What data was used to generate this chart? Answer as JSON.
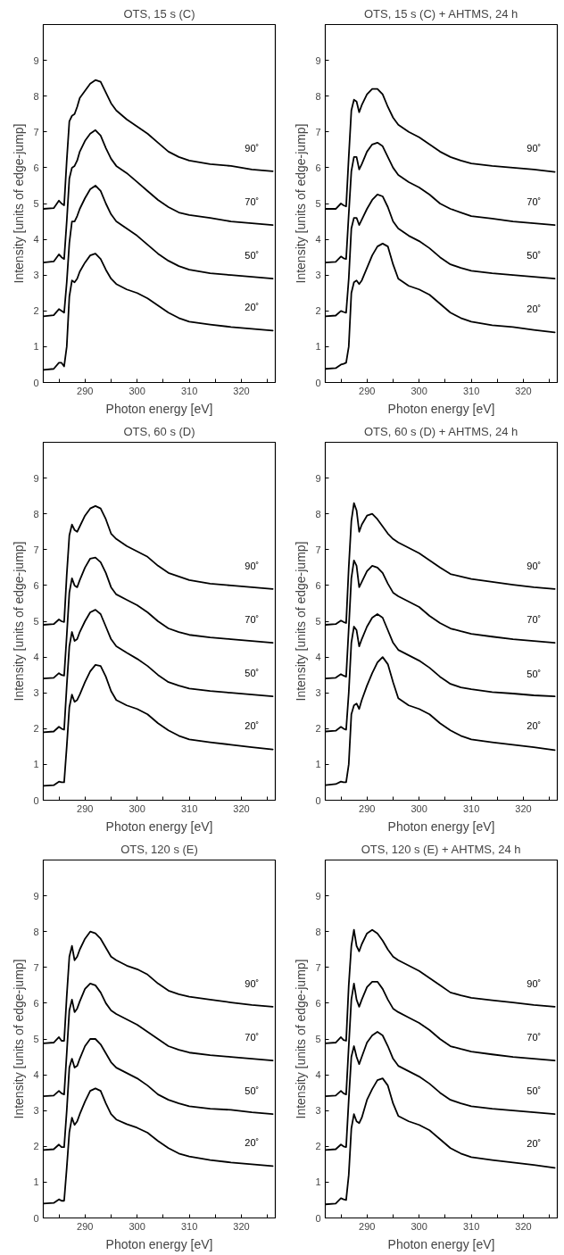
{
  "chart_data": [
    {
      "type": "line",
      "title": "OTS, 15 s (C)",
      "xlabel": "Photon energy [eV]",
      "ylabel": "Intensity [units of edge-jump]",
      "xlim": [
        282,
        326.5
      ],
      "ylim": [
        0,
        10
      ],
      "xticks": [
        {
          "value": 285,
          "label": null
        },
        290,
        {
          "value": 295,
          "label": null
        },
        300,
        {
          "value": 305,
          "label": null
        },
        310,
        {
          "value": 315,
          "label": null
        },
        320,
        {
          "value": 325,
          "label": null
        }
      ],
      "yticks": [
        0,
        1,
        2,
        3,
        4,
        5,
        6,
        7,
        8,
        9
      ],
      "grid": false,
      "legend": false,
      "x": [
        282,
        284,
        285,
        285.5,
        286,
        286.5,
        287,
        287.5,
        288,
        288.5,
        289,
        290,
        291,
        292,
        293,
        294,
        295,
        296,
        298,
        300,
        302,
        304,
        306,
        308,
        310,
        314,
        318,
        322,
        326
      ],
      "series": [
        {
          "name": "20˚",
          "color": "#000000",
          "values": [
            0.35,
            0.38,
            0.55,
            0.55,
            0.45,
            1.0,
            2.4,
            2.85,
            2.8,
            2.9,
            3.1,
            3.35,
            3.55,
            3.6,
            3.45,
            3.15,
            2.9,
            2.75,
            2.6,
            2.5,
            2.35,
            2.15,
            1.95,
            1.8,
            1.7,
            1.62,
            1.55,
            1.5,
            1.45
          ]
        },
        {
          "name": "50˚",
          "color": "#000000",
          "values": [
            1.85,
            1.88,
            2.05,
            2.0,
            1.95,
            2.8,
            3.9,
            4.5,
            4.5,
            4.65,
            4.85,
            5.15,
            5.4,
            5.5,
            5.35,
            5.0,
            4.7,
            4.5,
            4.3,
            4.1,
            3.85,
            3.6,
            3.4,
            3.25,
            3.15,
            3.05,
            3.0,
            2.95,
            2.9
          ]
        },
        {
          "name": "70˚",
          "color": "#000000",
          "values": [
            3.35,
            3.38,
            3.58,
            3.5,
            3.45,
            4.5,
            5.7,
            6.0,
            6.05,
            6.2,
            6.45,
            6.75,
            6.95,
            7.05,
            6.9,
            6.55,
            6.25,
            6.05,
            5.85,
            5.6,
            5.35,
            5.1,
            4.9,
            4.75,
            4.68,
            4.6,
            4.5,
            4.45,
            4.4
          ]
        },
        {
          "name": "90˚",
          "color": "#000000",
          "values": [
            4.85,
            4.87,
            5.08,
            5.0,
            4.95,
            6.2,
            7.3,
            7.45,
            7.5,
            7.7,
            7.95,
            8.15,
            8.35,
            8.45,
            8.4,
            8.1,
            7.8,
            7.6,
            7.35,
            7.15,
            6.95,
            6.7,
            6.45,
            6.3,
            6.2,
            6.1,
            6.05,
            5.95,
            5.9
          ]
        }
      ]
    },
    {
      "type": "line",
      "title": "OTS, 15 s (C) + AHTMS, 24 h",
      "xlabel": "Photon energy [eV]",
      "ylabel": "Intensity [units of edge-jump]",
      "xlim": [
        282,
        326.5
      ],
      "ylim": [
        0,
        10
      ],
      "xticks": [
        {
          "value": 285,
          "label": null
        },
        290,
        {
          "value": 295,
          "label": null
        },
        300,
        {
          "value": 305,
          "label": null
        },
        310,
        {
          "value": 315,
          "label": null
        },
        320,
        {
          "value": 325,
          "label": null
        }
      ],
      "yticks": [
        0,
        1,
        2,
        3,
        4,
        5,
        6,
        7,
        8,
        9
      ],
      "grid": false,
      "legend": false,
      "x": [
        282,
        284,
        285,
        285.5,
        286,
        286.5,
        287,
        287.5,
        288,
        288.5,
        289,
        290,
        291,
        292,
        293,
        294,
        295,
        296,
        298,
        300,
        302,
        304,
        306,
        308,
        310,
        314,
        318,
        322,
        326
      ],
      "series": [
        {
          "name": "20˚",
          "color": "#000000",
          "values": [
            0.38,
            0.4,
            0.5,
            0.52,
            0.55,
            1.0,
            2.5,
            2.8,
            2.85,
            2.75,
            2.85,
            3.2,
            3.55,
            3.8,
            3.88,
            3.8,
            3.3,
            2.9,
            2.7,
            2.6,
            2.45,
            2.2,
            1.95,
            1.8,
            1.7,
            1.6,
            1.55,
            1.47,
            1.4
          ]
        },
        {
          "name": "50˚",
          "color": "#000000",
          "values": [
            1.85,
            1.87,
            2.0,
            1.97,
            1.95,
            2.9,
            4.3,
            4.6,
            4.6,
            4.4,
            4.55,
            4.85,
            5.1,
            5.25,
            5.2,
            4.9,
            4.5,
            4.3,
            4.1,
            3.95,
            3.75,
            3.5,
            3.3,
            3.2,
            3.12,
            3.05,
            3.0,
            2.95,
            2.9
          ]
        },
        {
          "name": "70˚",
          "color": "#000000",
          "values": [
            3.35,
            3.37,
            3.52,
            3.47,
            3.45,
            4.7,
            5.9,
            6.3,
            6.3,
            5.95,
            6.1,
            6.45,
            6.65,
            6.7,
            6.6,
            6.3,
            6.0,
            5.8,
            5.6,
            5.45,
            5.25,
            5.0,
            4.85,
            4.75,
            4.65,
            4.58,
            4.5,
            4.45,
            4.4
          ]
        },
        {
          "name": "90˚",
          "color": "#000000",
          "values": [
            4.85,
            4.85,
            5.0,
            4.95,
            4.92,
            6.3,
            7.6,
            7.9,
            7.85,
            7.55,
            7.75,
            8.05,
            8.2,
            8.2,
            8.05,
            7.7,
            7.4,
            7.2,
            7.0,
            6.85,
            6.65,
            6.45,
            6.3,
            6.2,
            6.12,
            6.05,
            6.0,
            5.95,
            5.88
          ]
        }
      ]
    },
    {
      "type": "line",
      "title": "OTS, 60 s (D)",
      "xlabel": "Photon energy [eV]",
      "ylabel": "Intensity [units of edge-jump]",
      "xlim": [
        282,
        326.5
      ],
      "ylim": [
        0,
        10
      ],
      "xticks": [
        {
          "value": 285,
          "label": null
        },
        290,
        {
          "value": 295,
          "label": null
        },
        300,
        {
          "value": 305,
          "label": null
        },
        310,
        {
          "value": 315,
          "label": null
        },
        320,
        {
          "value": 325,
          "label": null
        }
      ],
      "yticks": [
        0,
        1,
        2,
        3,
        4,
        5,
        6,
        7,
        8,
        9
      ],
      "grid": false,
      "legend": false,
      "x": [
        282,
        284,
        285,
        285.5,
        286,
        286.5,
        287,
        287.5,
        288,
        288.5,
        289,
        290,
        291,
        292,
        293,
        294,
        295,
        296,
        298,
        300,
        302,
        304,
        306,
        308,
        310,
        314,
        318,
        322,
        326
      ],
      "series": [
        {
          "name": "20˚",
          "color": "#000000",
          "values": [
            0.4,
            0.42,
            0.52,
            0.5,
            0.5,
            1.5,
            2.6,
            2.95,
            2.75,
            2.8,
            2.95,
            3.3,
            3.6,
            3.78,
            3.75,
            3.45,
            3.05,
            2.8,
            2.65,
            2.55,
            2.4,
            2.15,
            1.95,
            1.8,
            1.7,
            1.62,
            1.55,
            1.48,
            1.42
          ]
        },
        {
          "name": "50˚",
          "color": "#000000",
          "values": [
            1.9,
            1.92,
            2.05,
            2.0,
            1.97,
            3.2,
            4.3,
            4.7,
            4.45,
            4.5,
            4.7,
            5.0,
            5.25,
            5.32,
            5.2,
            4.85,
            4.5,
            4.3,
            4.12,
            3.95,
            3.75,
            3.5,
            3.3,
            3.2,
            3.12,
            3.05,
            3.0,
            2.95,
            2.9
          ]
        },
        {
          "name": "70˚",
          "color": "#000000",
          "values": [
            3.4,
            3.42,
            3.55,
            3.5,
            3.48,
            4.6,
            5.8,
            6.2,
            6.0,
            5.95,
            6.15,
            6.5,
            6.75,
            6.78,
            6.65,
            6.35,
            5.95,
            5.75,
            5.6,
            5.45,
            5.25,
            5.0,
            4.8,
            4.7,
            4.62,
            4.55,
            4.5,
            4.45,
            4.4
          ]
        },
        {
          "name": "90˚",
          "color": "#000000",
          "values": [
            4.9,
            4.92,
            5.05,
            5.0,
            4.98,
            6.3,
            7.4,
            7.7,
            7.55,
            7.5,
            7.65,
            7.95,
            8.15,
            8.22,
            8.15,
            7.85,
            7.45,
            7.3,
            7.1,
            6.95,
            6.8,
            6.55,
            6.35,
            6.25,
            6.15,
            6.05,
            6.0,
            5.95,
            5.9
          ]
        }
      ]
    },
    {
      "type": "line",
      "title": "OTS, 60 s (D) + AHTMS, 24 h",
      "xlabel": "Photon energy [eV]",
      "ylabel": "Intensity [units of edge-jump]",
      "xlim": [
        282,
        326.5
      ],
      "ylim": [
        0,
        10
      ],
      "xticks": [
        {
          "value": 285,
          "label": null
        },
        290,
        {
          "value": 295,
          "label": null
        },
        300,
        {
          "value": 305,
          "label": null
        },
        310,
        {
          "value": 315,
          "label": null
        },
        320,
        {
          "value": 325,
          "label": null
        }
      ],
      "yticks": [
        0,
        1,
        2,
        3,
        4,
        5,
        6,
        7,
        8,
        9
      ],
      "grid": false,
      "legend": false,
      "x": [
        282,
        284,
        285,
        285.5,
        286,
        286.5,
        287,
        287.5,
        288,
        288.5,
        289,
        290,
        291,
        292,
        293,
        294,
        295,
        296,
        298,
        300,
        302,
        304,
        306,
        308,
        310,
        314,
        318,
        322,
        326
      ],
      "series": [
        {
          "name": "20˚",
          "color": "#000000",
          "values": [
            0.42,
            0.45,
            0.52,
            0.5,
            0.5,
            1.0,
            2.4,
            2.65,
            2.7,
            2.55,
            2.8,
            3.2,
            3.55,
            3.85,
            4.0,
            3.8,
            3.3,
            2.85,
            2.65,
            2.55,
            2.4,
            2.15,
            1.95,
            1.8,
            1.7,
            1.62,
            1.55,
            1.48,
            1.4
          ]
        },
        {
          "name": "50˚",
          "color": "#000000",
          "values": [
            1.92,
            1.94,
            2.05,
            2.0,
            1.97,
            3.0,
            4.4,
            4.85,
            4.75,
            4.3,
            4.5,
            4.85,
            5.1,
            5.2,
            5.1,
            4.75,
            4.4,
            4.2,
            4.05,
            3.9,
            3.7,
            3.45,
            3.25,
            3.15,
            3.1,
            3.02,
            2.98,
            2.93,
            2.9
          ]
        },
        {
          "name": "70˚",
          "color": "#000000",
          "values": [
            3.4,
            3.42,
            3.52,
            3.48,
            3.45,
            4.8,
            6.2,
            6.7,
            6.55,
            5.95,
            6.1,
            6.4,
            6.55,
            6.5,
            6.35,
            6.05,
            5.8,
            5.7,
            5.55,
            5.4,
            5.15,
            4.95,
            4.8,
            4.72,
            4.65,
            4.57,
            4.5,
            4.45,
            4.4
          ]
        },
        {
          "name": "90˚",
          "color": "#000000",
          "values": [
            4.9,
            4.92,
            5.02,
            4.98,
            4.95,
            6.5,
            7.8,
            8.3,
            8.1,
            7.5,
            7.7,
            7.95,
            8.0,
            7.85,
            7.65,
            7.45,
            7.3,
            7.2,
            7.05,
            6.9,
            6.7,
            6.5,
            6.32,
            6.25,
            6.18,
            6.1,
            6.02,
            5.95,
            5.9
          ]
        }
      ]
    },
    {
      "type": "line",
      "title": "OTS, 120 s (E)",
      "xlabel": "Photon energy [eV]",
      "ylabel": "Intensity [units of edge-jump]",
      "xlim": [
        282,
        326.5
      ],
      "ylim": [
        0,
        10
      ],
      "xticks": [
        {
          "value": 285,
          "label": null
        },
        290,
        {
          "value": 295,
          "label": null
        },
        300,
        {
          "value": 305,
          "label": null
        },
        310,
        {
          "value": 315,
          "label": null
        },
        320,
        {
          "value": 325,
          "label": null
        }
      ],
      "yticks": [
        0,
        1,
        2,
        3,
        4,
        5,
        6,
        7,
        8,
        9
      ],
      "grid": false,
      "legend": false,
      "x": [
        282,
        284,
        285,
        285.5,
        286,
        286.5,
        287,
        287.5,
        288,
        288.5,
        289,
        290,
        291,
        292,
        293,
        294,
        295,
        296,
        298,
        300,
        302,
        304,
        306,
        308,
        310,
        314,
        318,
        322,
        326
      ],
      "series": [
        {
          "name": "20˚",
          "color": "#000000",
          "values": [
            0.4,
            0.42,
            0.52,
            0.48,
            0.48,
            1.4,
            2.4,
            2.8,
            2.6,
            2.7,
            2.9,
            3.25,
            3.55,
            3.62,
            3.55,
            3.2,
            2.9,
            2.75,
            2.62,
            2.52,
            2.38,
            2.15,
            1.95,
            1.8,
            1.72,
            1.62,
            1.55,
            1.5,
            1.45
          ]
        },
        {
          "name": "50˚",
          "color": "#000000",
          "values": [
            1.9,
            1.92,
            2.05,
            1.98,
            1.98,
            3.0,
            4.2,
            4.45,
            4.2,
            4.25,
            4.45,
            4.8,
            5.0,
            5.0,
            4.85,
            4.6,
            4.35,
            4.2,
            4.05,
            3.9,
            3.7,
            3.45,
            3.3,
            3.2,
            3.12,
            3.05,
            3.02,
            2.95,
            2.9
          ]
        },
        {
          "name": "70˚",
          "color": "#000000",
          "values": [
            3.4,
            3.42,
            3.55,
            3.48,
            3.45,
            4.6,
            5.8,
            6.1,
            5.75,
            5.85,
            6.05,
            6.4,
            6.55,
            6.5,
            6.3,
            6.0,
            5.8,
            5.7,
            5.55,
            5.4,
            5.2,
            5.0,
            4.8,
            4.7,
            4.62,
            4.55,
            4.5,
            4.45,
            4.4
          ]
        },
        {
          "name": "90˚",
          "color": "#000000",
          "values": [
            4.88,
            4.9,
            5.05,
            4.95,
            4.95,
            6.2,
            7.3,
            7.6,
            7.2,
            7.3,
            7.5,
            7.8,
            8.0,
            7.95,
            7.8,
            7.55,
            7.3,
            7.2,
            7.05,
            6.95,
            6.8,
            6.55,
            6.35,
            6.25,
            6.18,
            6.1,
            6.02,
            5.95,
            5.9
          ]
        }
      ]
    },
    {
      "type": "line",
      "title": "OTS, 120 s (E) + AHTMS, 24 h",
      "xlabel": "Photon energy [eV]",
      "ylabel": "Intensity [units of edge-jump]",
      "xlim": [
        282,
        326.5
      ],
      "ylim": [
        0,
        10
      ],
      "xticks": [
        {
          "value": 285,
          "label": null
        },
        290,
        {
          "value": 295,
          "label": null
        },
        300,
        {
          "value": 305,
          "label": null
        },
        310,
        {
          "value": 315,
          "label": null
        },
        320,
        {
          "value": 325,
          "label": null
        }
      ],
      "yticks": [
        0,
        1,
        2,
        3,
        4,
        5,
        6,
        7,
        8,
        9
      ],
      "grid": false,
      "legend": false,
      "x": [
        282,
        284,
        285,
        285.5,
        286,
        286.5,
        287,
        287.5,
        288,
        288.5,
        289,
        290,
        291,
        292,
        293,
        294,
        295,
        296,
        298,
        300,
        302,
        304,
        306,
        308,
        310,
        314,
        318,
        322,
        326
      ],
      "series": [
        {
          "name": "20˚",
          "color": "#000000",
          "values": [
            0.38,
            0.4,
            0.55,
            0.52,
            0.5,
            1.2,
            2.5,
            2.9,
            2.7,
            2.65,
            2.8,
            3.3,
            3.6,
            3.85,
            3.9,
            3.7,
            3.2,
            2.85,
            2.7,
            2.6,
            2.45,
            2.2,
            1.95,
            1.8,
            1.7,
            1.62,
            1.55,
            1.48,
            1.4
          ]
        },
        {
          "name": "50˚",
          "color": "#000000",
          "values": [
            1.9,
            1.92,
            2.05,
            2.0,
            1.98,
            3.3,
            4.5,
            4.8,
            4.5,
            4.3,
            4.5,
            4.9,
            5.1,
            5.2,
            5.1,
            4.8,
            4.45,
            4.25,
            4.1,
            3.95,
            3.75,
            3.5,
            3.3,
            3.2,
            3.12,
            3.05,
            3.0,
            2.95,
            2.9
          ]
        },
        {
          "name": "70˚",
          "color": "#000000",
          "values": [
            3.4,
            3.42,
            3.55,
            3.48,
            3.45,
            4.8,
            6.1,
            6.55,
            6.1,
            5.9,
            6.1,
            6.45,
            6.6,
            6.6,
            6.4,
            6.1,
            5.85,
            5.75,
            5.6,
            5.45,
            5.25,
            5.0,
            4.8,
            4.72,
            4.65,
            4.57,
            4.5,
            4.45,
            4.4
          ]
        },
        {
          "name": "90˚",
          "color": "#000000",
          "values": [
            4.88,
            4.9,
            5.05,
            4.97,
            4.95,
            6.5,
            7.6,
            8.05,
            7.6,
            7.45,
            7.65,
            7.95,
            8.05,
            7.95,
            7.75,
            7.5,
            7.3,
            7.2,
            7.05,
            6.9,
            6.7,
            6.5,
            6.3,
            6.22,
            6.15,
            6.08,
            6.02,
            5.95,
            5.9
          ]
        }
      ]
    }
  ]
}
